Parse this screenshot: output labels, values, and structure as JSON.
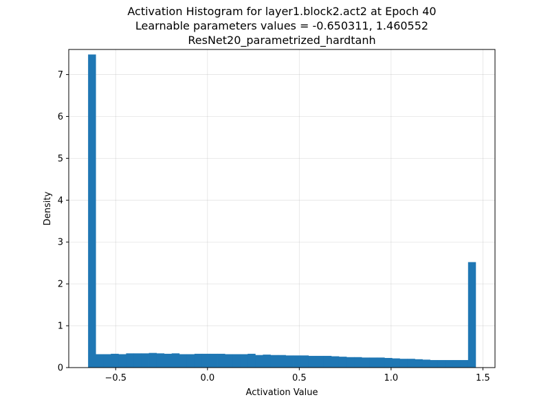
{
  "chart_data": {
    "type": "bar",
    "title_lines": [
      "Activation Histogram for layer1.block2.act2 at Epoch 40",
      "Learnable parameters values = -0.650311, 1.460552",
      "ResNet20_parametrized_hardtanh"
    ],
    "xlabel": "Activation Value",
    "ylabel": "Density",
    "xlim": [
      -0.7556,
      1.5659
    ],
    "ylim": [
      0,
      7.6
    ],
    "xticks": [
      -0.5,
      0.0,
      0.5,
      1.0,
      1.5
    ],
    "xtick_labels": [
      "−0.5",
      "0.0",
      "0.5",
      "1.0",
      "1.5"
    ],
    "yticks": [
      0,
      1,
      2,
      3,
      4,
      5,
      6,
      7
    ],
    "ytick_labels": [
      "0",
      "1",
      "2",
      "3",
      "4",
      "5",
      "6",
      "7"
    ],
    "grid": true,
    "bar_color": "#1f77b4",
    "bin_range": [
      -0.650311,
      1.460552
    ],
    "values": [
      7.48,
      0.32,
      0.32,
      0.33,
      0.32,
      0.34,
      0.34,
      0.34,
      0.35,
      0.34,
      0.33,
      0.34,
      0.32,
      0.32,
      0.33,
      0.33,
      0.33,
      0.33,
      0.32,
      0.32,
      0.32,
      0.33,
      0.3,
      0.31,
      0.3,
      0.3,
      0.29,
      0.29,
      0.29,
      0.28,
      0.28,
      0.28,
      0.27,
      0.26,
      0.25,
      0.25,
      0.24,
      0.24,
      0.24,
      0.23,
      0.22,
      0.21,
      0.21,
      0.2,
      0.19,
      0.18,
      0.18,
      0.18,
      0.18,
      0.18,
      2.52
    ]
  }
}
